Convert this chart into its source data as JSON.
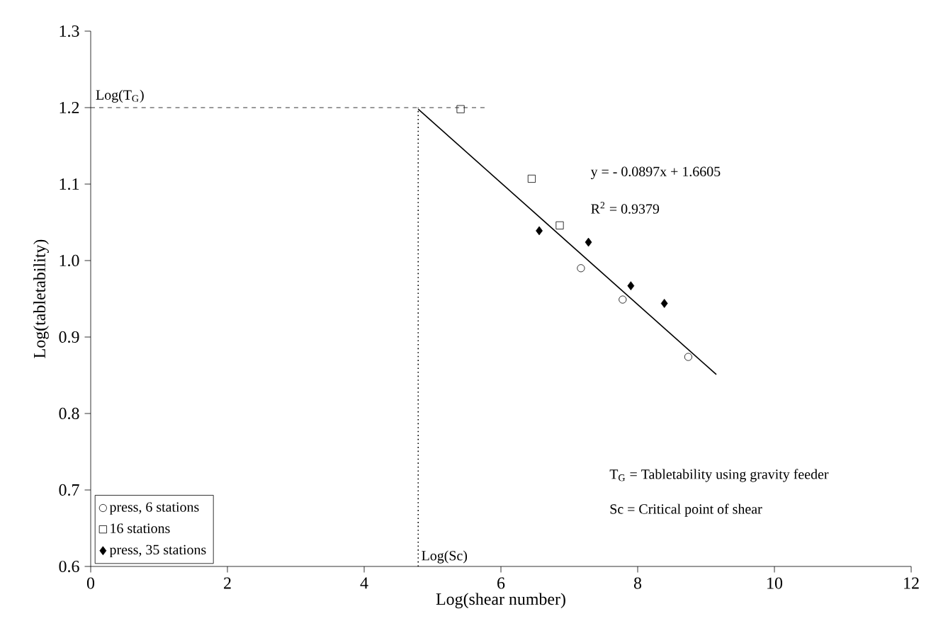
{
  "chart_data": {
    "type": "scatter",
    "xlabel": "Log(shear number)",
    "ylabel": "Log(tabletability)",
    "xlim": [
      0,
      12
    ],
    "ylim": [
      0.6,
      1.3
    ],
    "xticks": [
      0,
      2,
      4,
      6,
      8,
      10,
      12
    ],
    "yticks": [
      0.6,
      0.7,
      0.8,
      0.9,
      {
        "value": 1,
        "label": "1.0"
      },
      1.1,
      1.2,
      1.3
    ],
    "grid": false,
    "legend": "bottom left",
    "series": [
      {
        "name": "press, 6 stations",
        "color": "#000000",
        "marker": "circle",
        "x": [
          7.17,
          7.78,
          8.74
        ],
        "values": [
          0.99,
          0.949,
          0.874
        ]
      },
      {
        "name": "16 stations",
        "color": "#000000",
        "marker": "square",
        "x": [
          5.41,
          6.45,
          6.86
        ],
        "values": [
          1.198,
          1.107,
          1.046
        ]
      },
      {
        "name": "press, 35 stations",
        "color": "#000000",
        "marker": "diamond",
        "x": [
          6.56,
          7.28,
          7.9,
          8.39
        ],
        "values": [
          1.039,
          1.024,
          0.967,
          0.944
        ]
      },
      {
        "type": "line",
        "color": "#000000",
        "marker": "none",
        "line_style": "solid",
        "x": [
          4.79,
          9.15
        ],
        "values": [
          1.198,
          0.851
        ]
      }
    ],
    "ref_lines": [
      {
        "axis": "y",
        "value": 1.2,
        "label": "Log(T$_{G}$)",
        "line_style": "dashed"
      },
      {
        "axis": "x",
        "value": 4.79,
        "label": "Log(Sc)",
        "line_style": "dotted"
      }
    ],
    "annotations": [
      "y = - 0.0897x + 1.6605",
      "R$^{2}$ = 0.9379",
      "T$_{G}$ = Tabletability using gravity feeder",
      "Sc = Critical point of shear"
    ]
  }
}
